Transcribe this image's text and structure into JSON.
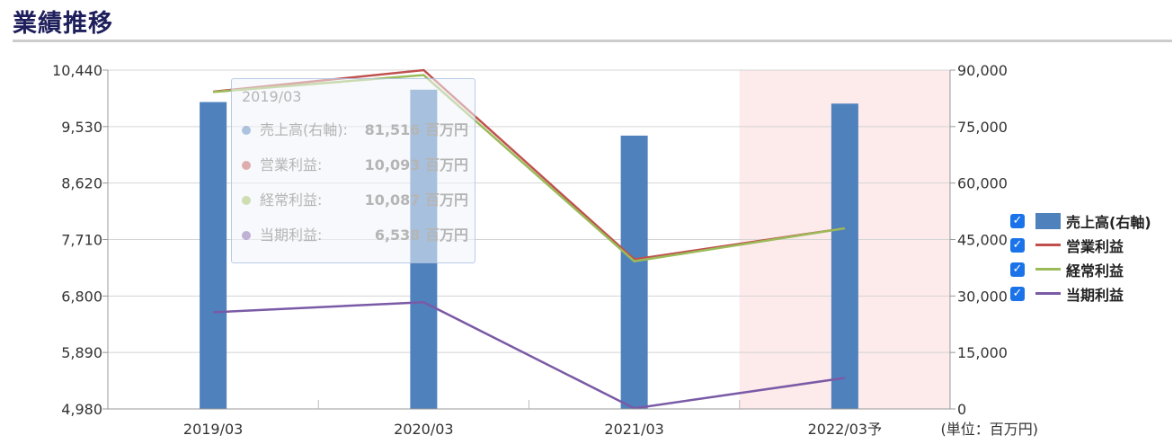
{
  "page_title": "業績推移",
  "chart_data": {
    "type": "bar",
    "categories": [
      "2019/03",
      "2020/03",
      "2021/03",
      "2022/03予"
    ],
    "unit_note": "(単位：百万円)",
    "forecast_category_index": 3,
    "y_left": {
      "min": 4980,
      "max": 10440,
      "ticks": [
        "10,440",
        "9,530",
        "8,620",
        "7,710",
        "6,800",
        "5,890",
        "4,980"
      ],
      "tick_values": [
        10440,
        9530,
        8620,
        7710,
        6800,
        5890,
        4980
      ]
    },
    "y_right": {
      "min": 0,
      "max": 90000,
      "ticks": [
        "90,000",
        "75,000",
        "60,000",
        "45,000",
        "30,000",
        "15,000",
        "0"
      ],
      "tick_values": [
        90000,
        75000,
        60000,
        45000,
        30000,
        15000,
        0
      ]
    },
    "grid": true,
    "legend_position": "right",
    "series": [
      {
        "name": "売上高(右軸)",
        "type": "bar",
        "axis": "right",
        "color": "#4f81bd",
        "values": [
          81516,
          84800,
          72600,
          81100
        ]
      },
      {
        "name": "営業利益",
        "type": "line",
        "axis": "left",
        "color": "#c0504d",
        "values": [
          10093,
          10440,
          7390,
          7890
        ]
      },
      {
        "name": "経常利益",
        "type": "line",
        "axis": "left",
        "color": "#9bbb59",
        "values": [
          10087,
          10360,
          7360,
          7890
        ]
      },
      {
        "name": "当期利益",
        "type": "line",
        "axis": "left",
        "color": "#7a5aa6",
        "values": [
          6538,
          6700,
          4990,
          5480
        ]
      }
    ]
  },
  "tooltip": {
    "title": "2019/03",
    "rows": [
      {
        "label": "売上高(右軸):",
        "value": "81,516 百万円",
        "color": "#4f81bd"
      },
      {
        "label": "営業利益:",
        "value": "10,093 百万円",
        "color": "#c0504d"
      },
      {
        "label": "経常利益:",
        "value": "10,087 百万円",
        "color": "#9bbb59"
      },
      {
        "label": "当期利益:",
        "value": "6,538 百万円",
        "color": "#7a5aa6"
      }
    ]
  },
  "legend": [
    {
      "label": "売上高(右軸)",
      "checked": true,
      "kind": "bar",
      "color": "#4f81bd"
    },
    {
      "label": "営業利益",
      "checked": true,
      "kind": "line",
      "color": "#c0504d"
    },
    {
      "label": "経常利益",
      "checked": true,
      "kind": "line",
      "color": "#9bbb59"
    },
    {
      "label": "当期利益",
      "checked": true,
      "kind": "line",
      "color": "#7a5aa6"
    }
  ]
}
